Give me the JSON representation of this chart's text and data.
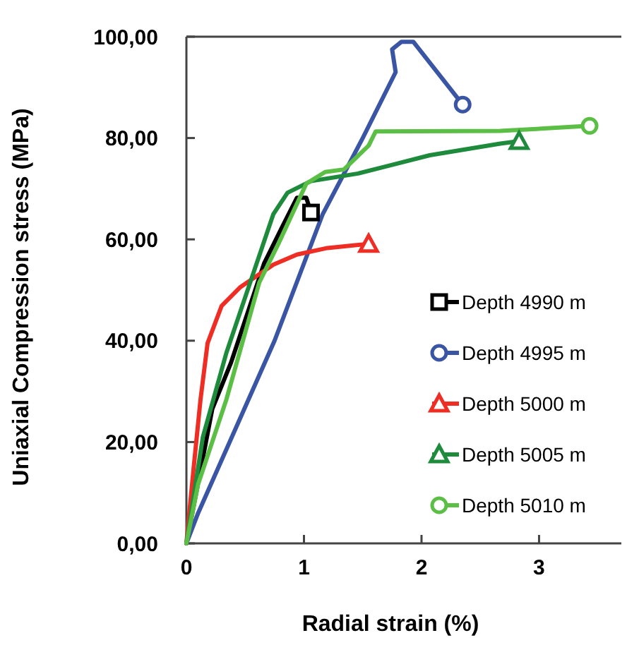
{
  "chart_data": {
    "type": "line",
    "xlabel": "Radial strain (%)",
    "ylabel": "Uniaxial Compression stress (MPa)",
    "xlim": [
      0,
      3.7
    ],
    "xticks": [
      0,
      1,
      2,
      3
    ],
    "ylim": [
      0,
      100
    ],
    "yticks": [
      {
        "value": 0,
        "label": "0,00"
      },
      {
        "value": 20,
        "label": "20,00"
      },
      {
        "value": 40,
        "label": "40,00"
      },
      {
        "value": 60,
        "label": "60,00"
      },
      {
        "value": 80,
        "label": "80,00"
      },
      {
        "value": 100,
        "label": "100,00"
      }
    ],
    "grid": false,
    "legend": "right",
    "line_style": "solid",
    "series": [
      {
        "name": "Depth 4990 m",
        "color": "#000000",
        "x": [
          0,
          0.1,
          0.22,
          0.38,
          0.66,
          0.82,
          0.94,
          1.02,
          1.06
        ],
        "values": [
          0,
          12,
          26.5,
          35.7,
          55.2,
          62.7,
          68.2,
          68.2,
          65.3
        ]
      },
      {
        "name": "Depth 4995 m",
        "color": "#3a55a4",
        "x": [
          0,
          0.1,
          0.75,
          1.16,
          1.5,
          1.78,
          1.75,
          1.83,
          1.93,
          2.35
        ],
        "values": [
          0,
          6,
          40,
          65,
          80,
          93,
          97.5,
          99,
          99,
          86.6
        ]
      },
      {
        "name": "Depth 5000 m",
        "color": "#ee2e24",
        "x": [
          0,
          0.06,
          0.12,
          0.18,
          0.3,
          0.46,
          0.74,
          0.94,
          1.2,
          1.55
        ],
        "values": [
          0,
          14.5,
          28.4,
          39.5,
          46.9,
          50.6,
          55,
          57,
          58.3,
          59.1
        ]
      },
      {
        "name": "Depth 5005 m",
        "color": "#1e8b3c",
        "x": [
          0,
          0.14,
          0.34,
          0.55,
          0.74,
          0.86,
          1.06,
          1.46,
          1.75,
          2.07,
          2.67,
          2.83
        ],
        "values": [
          0,
          21,
          37.6,
          52,
          65,
          69.2,
          71.5,
          73,
          74.7,
          76.6,
          78.9,
          79.4
        ]
      },
      {
        "name": "Depth 5010 m",
        "color": "#5cbf45",
        "x": [
          0,
          0.1,
          0.34,
          0.62,
          0.78,
          1.02,
          1.18,
          1.34,
          1.55,
          1.61,
          2.67,
          3.43
        ],
        "values": [
          0,
          11.7,
          28.4,
          51.5,
          59,
          71,
          73.3,
          73.8,
          78.5,
          81.3,
          81.4,
          82.4
        ]
      },
      {
        "type": "scatter",
        "color": "#000000",
        "marker": "square",
        "x": [
          1.06
        ],
        "values": [
          65.3
        ]
      },
      {
        "type": "scatter",
        "color": "#3a55a4",
        "marker": "circle",
        "x": [
          2.35
        ],
        "values": [
          86.6
        ]
      },
      {
        "type": "scatter",
        "color": "#ee2e24",
        "marker": "triangle",
        "x": [
          1.55
        ],
        "values": [
          59.1
        ]
      },
      {
        "type": "scatter",
        "color": "#1e8b3c",
        "marker": "triangle",
        "x": [
          2.83
        ],
        "values": [
          79.4
        ]
      },
      {
        "type": "scatter",
        "color": "#5cbf45",
        "marker": "circle",
        "x": [
          3.43
        ],
        "values": [
          82.4
        ]
      }
    ]
  }
}
